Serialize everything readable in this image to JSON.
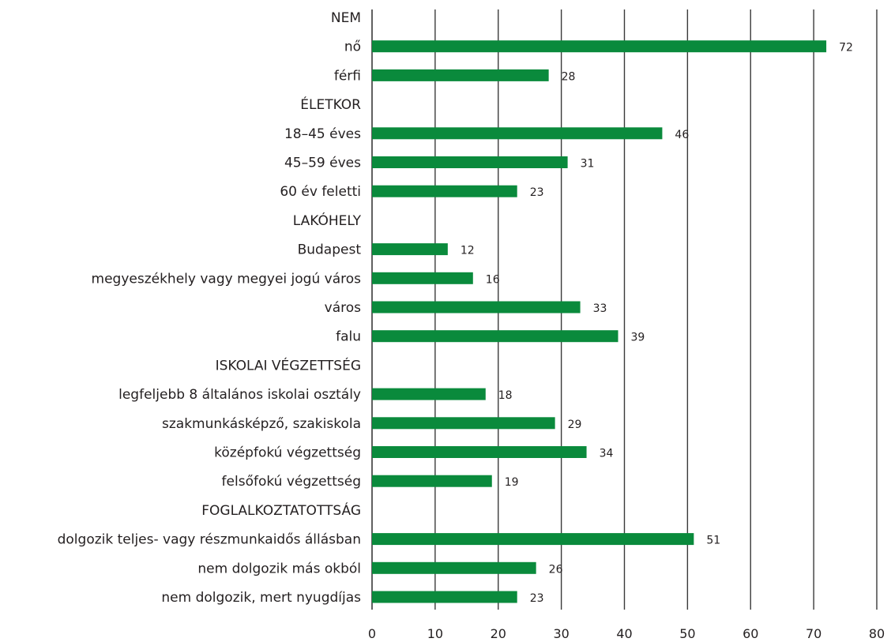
{
  "chart_data": {
    "type": "bar",
    "orientation": "horizontal",
    "bar_color": "#0a8a3c",
    "grid": true,
    "xlim": [
      0,
      80
    ],
    "x_ticks": [
      0,
      10,
      20,
      30,
      40,
      50,
      60,
      70,
      80
    ],
    "rows": [
      {
        "label": "NEM",
        "header": true
      },
      {
        "label": "nő",
        "value": 72
      },
      {
        "label": "férfi",
        "value": 28
      },
      {
        "label": "ÉLETKOR",
        "header": true
      },
      {
        "label": "18–45 éves",
        "value": 46
      },
      {
        "label": "45–59 éves",
        "value": 31
      },
      {
        "label": "60 év feletti",
        "value": 23
      },
      {
        "label": "LAKÓHELY",
        "header": true
      },
      {
        "label": "Budapest",
        "value": 12
      },
      {
        "label": "megyeszékhely vagy megyei jogú város",
        "value": 16
      },
      {
        "label": "város",
        "value": 33
      },
      {
        "label": "falu",
        "value": 39
      },
      {
        "label": "ISKOLAI VÉGZETTSÉG",
        "header": true
      },
      {
        "label": "legfeljebb 8 általános iskolai osztály",
        "value": 18
      },
      {
        "label": "szakmunkásképző, szakiskola",
        "value": 29
      },
      {
        "label": "középfokú végzettség",
        "value": 34
      },
      {
        "label": "felsőfokú végzettség",
        "value": 19
      },
      {
        "label": "FOGLALKOZTATOTTSÁG",
        "header": true
      },
      {
        "label": "dolgozik teljes- vagy részmunkaidős állásban",
        "value": 51
      },
      {
        "label": "nem dolgozik más okból",
        "value": 26
      },
      {
        "label": "nem dolgozik, mert nyugdíjas",
        "value": 23
      }
    ]
  }
}
